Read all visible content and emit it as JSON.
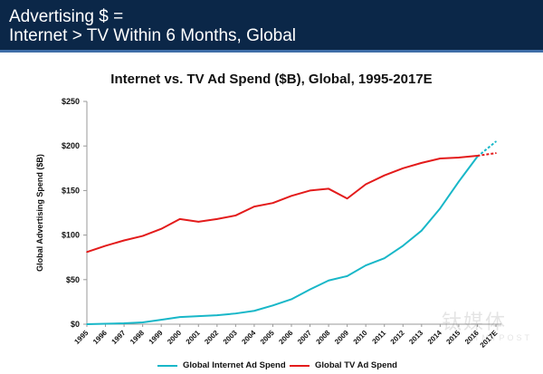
{
  "header": {
    "line1": "Advertising $ =",
    "line2": "Internet > TV Within 6 Months, Global"
  },
  "watermark": {
    "chinese": "钛媒体",
    "english": "TMTPOST"
  },
  "colors": {
    "header_bg": "#0b2748",
    "header_rule": "#3f6ea8",
    "internet": "#18b7c8",
    "tv": "#e31b1b",
    "axis": "#999999"
  },
  "chart_data": {
    "type": "line",
    "title": "Internet vs. TV Ad Spend ($B), Global, 1995-2017E",
    "xlabel": "",
    "ylabel": "Global Advertising Spend ($B)",
    "categories": [
      "1995",
      "1996",
      "1997",
      "1998",
      "1999",
      "2000",
      "2001",
      "2002",
      "2003",
      "2004",
      "2005",
      "2006",
      "2007",
      "2008",
      "2009",
      "2010",
      "2011",
      "2012",
      "2013",
      "2014",
      "2015",
      "2016",
      "2017E"
    ],
    "ylim": [
      0,
      250
    ],
    "yticks": [
      0,
      50,
      100,
      150,
      200,
      250
    ],
    "ytick_labels": [
      "$0",
      "$50",
      "$100",
      "$150",
      "$200",
      "$250"
    ],
    "grid": false,
    "legend_position": "bottom",
    "estimated_from": "2017E",
    "series": [
      {
        "name": "Global Internet Ad Spend",
        "color": "#18b7c8",
        "values": [
          0,
          0.5,
          1,
          2,
          5,
          8,
          9,
          10,
          12,
          15,
          21,
          28,
          39,
          49,
          54,
          66,
          74,
          88,
          105,
          130,
          160,
          188,
          205
        ]
      },
      {
        "name": "Global TV Ad Spend",
        "color": "#e31b1b",
        "values": [
          81,
          88,
          94,
          99,
          107,
          118,
          115,
          118,
          122,
          132,
          136,
          144,
          150,
          152,
          141,
          157,
          167,
          175,
          181,
          186,
          187,
          189,
          192
        ]
      }
    ]
  }
}
